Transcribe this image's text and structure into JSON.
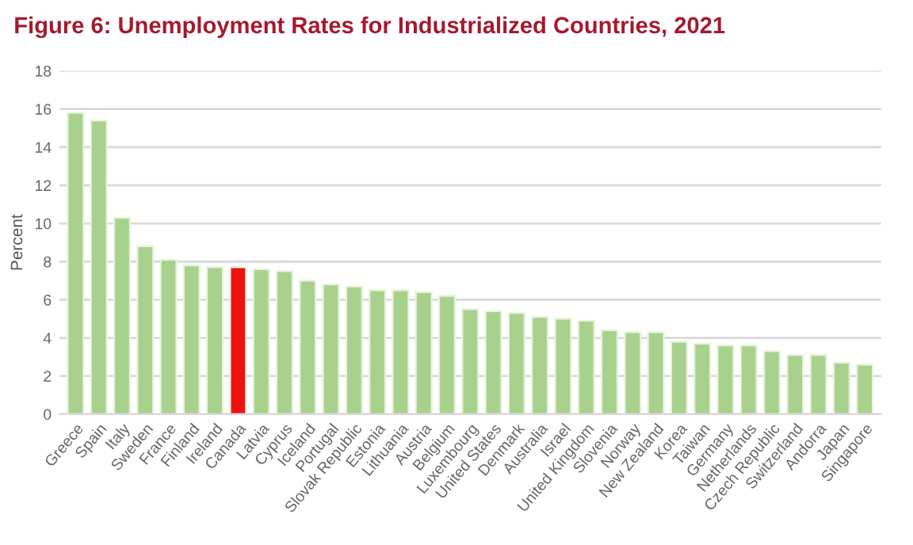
{
  "chart_data": {
    "type": "bar",
    "title": "Figure 6: Unemployment Rates for Industrialized Countries, 2021",
    "ylabel": "Percent",
    "categories": [
      "Greece",
      "Spain",
      "Italy",
      "Sweden",
      "France",
      "Finland",
      "Ireland",
      "Canada",
      "Latvia",
      "Cyprus",
      "Iceland",
      "Portugal",
      "Slovak Republic",
      "Estonia",
      "Lithuania",
      "Austria",
      "Belgium",
      "Luxembourg",
      "United States",
      "Denmark",
      "Australia",
      "Israel",
      "United Kingdom",
      "Slovenia",
      "Norway",
      "New Zealand",
      "Korea",
      "Taiwan",
      "Germany",
      "Netherlands",
      "Czech Republic",
      "Switzerland",
      "Andorra",
      "Japan",
      "Singapore"
    ],
    "values": [
      15.8,
      15.4,
      10.3,
      8.8,
      8.1,
      7.8,
      7.7,
      7.7,
      7.6,
      7.5,
      7.0,
      6.8,
      6.7,
      6.5,
      6.5,
      6.4,
      6.2,
      5.5,
      5.4,
      5.3,
      5.1,
      5.0,
      4.9,
      4.4,
      4.3,
      4.3,
      3.8,
      3.7,
      3.6,
      3.6,
      3.3,
      3.1,
      3.1,
      2.7,
      2.6
    ],
    "colors": [
      "#a9d18e",
      "#a9d18e",
      "#a9d18e",
      "#a9d18e",
      "#a9d18e",
      "#a9d18e",
      "#a9d18e",
      "#ee1111",
      "#a9d18e",
      "#a9d18e",
      "#a9d18e",
      "#a9d18e",
      "#a9d18e",
      "#a9d18e",
      "#a9d18e",
      "#a9d18e",
      "#a9d18e",
      "#a9d18e",
      "#a9d18e",
      "#a9d18e",
      "#a9d18e",
      "#a9d18e",
      "#a9d18e",
      "#a9d18e",
      "#a9d18e",
      "#a9d18e",
      "#a9d18e",
      "#a9d18e",
      "#a9d18e",
      "#a9d18e",
      "#a9d18e",
      "#a9d18e",
      "#a9d18e",
      "#a9d18e",
      "#a9d18e"
    ],
    "ylim": [
      0,
      18
    ],
    "yticks": [
      0,
      2,
      4,
      6,
      8,
      10,
      12,
      14,
      16,
      18
    ],
    "grid": "y",
    "legend": false
  }
}
